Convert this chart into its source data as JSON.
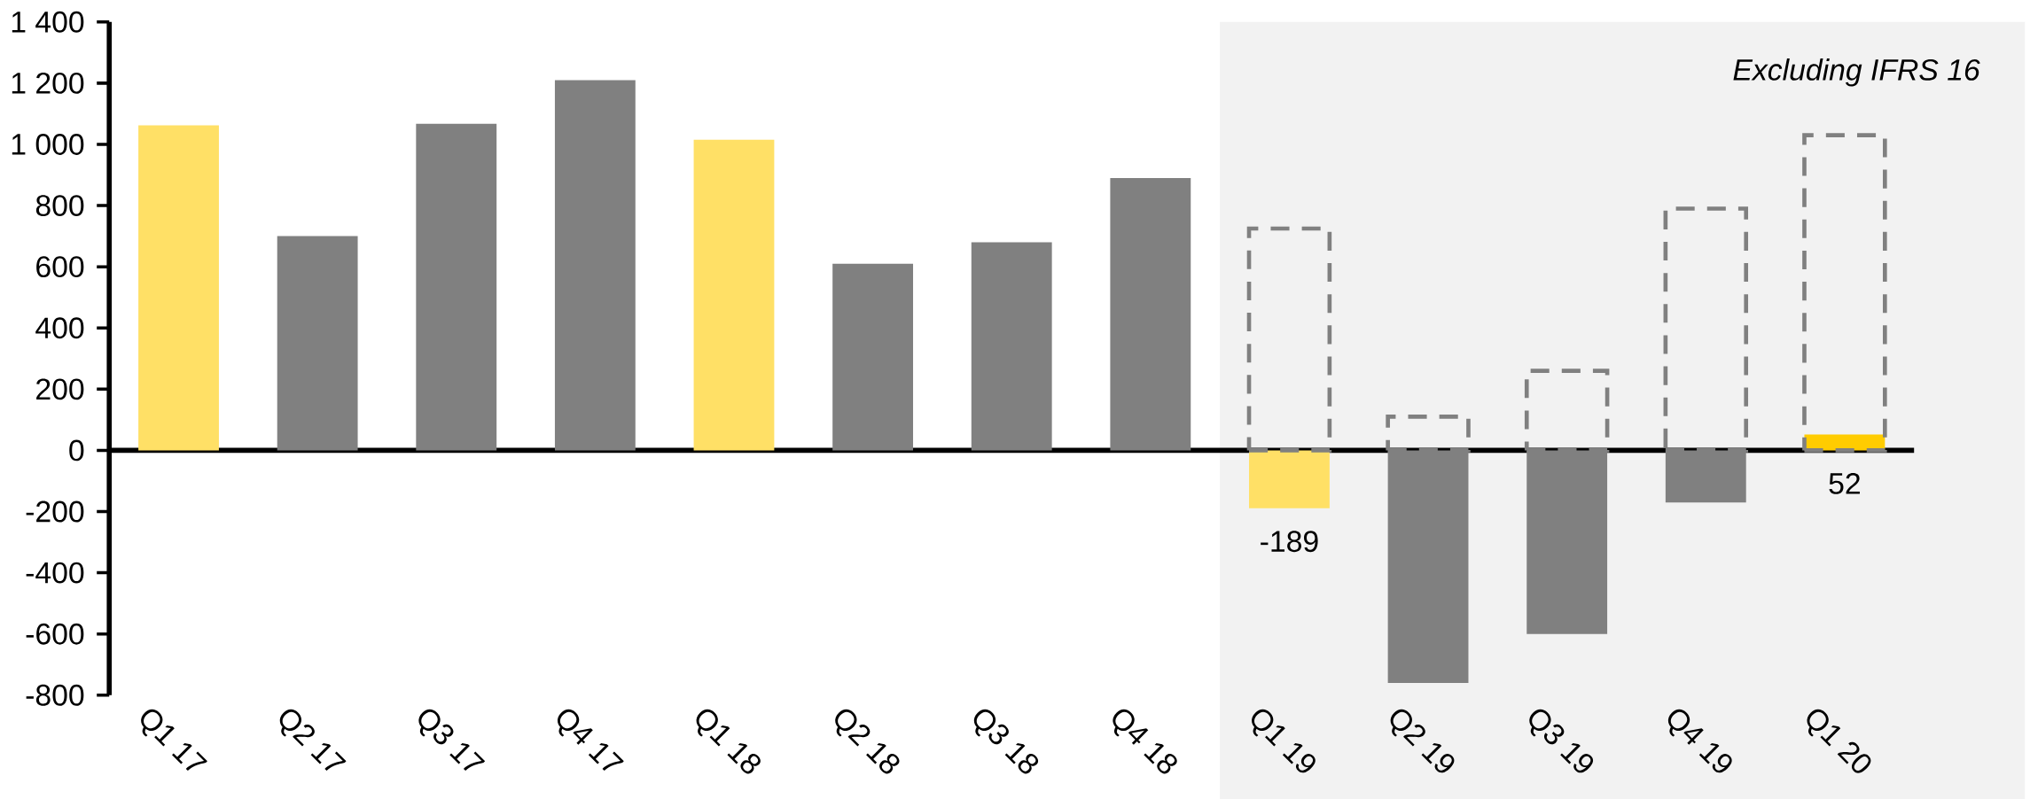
{
  "chart_data": {
    "type": "bar",
    "categories": [
      "Q1 17",
      "Q2 17",
      "Q3 17",
      "Q4 17",
      "Q1 18",
      "Q2 18",
      "Q3 18",
      "Q4 18",
      "Q1 19",
      "Q2 19",
      "Q3 19",
      "Q4 19",
      "Q1 20"
    ],
    "series": [
      {
        "colors": [
          "#ffe066",
          "#808080",
          "#808080",
          "#808080",
          "#ffe066",
          "#808080",
          "#808080",
          "#808080",
          "#ffe066",
          "#808080",
          "#808080",
          "#808080",
          "#ffcc00"
        ],
        "values": [
          1062,
          700,
          1067,
          1210,
          1015,
          610,
          680,
          890,
          -189,
          -760,
          -600,
          -170,
          52
        ],
        "value_labels": [
          null,
          null,
          null,
          null,
          null,
          null,
          null,
          null,
          "-189",
          null,
          null,
          null,
          "52"
        ]
      },
      {
        "type": "bar",
        "line_style": "dashed",
        "color": "#808080",
        "values": [
          null,
          null,
          null,
          null,
          null,
          null,
          null,
          null,
          725,
          110,
          260,
          790,
          1030
        ]
      }
    ],
    "ylim": [
      -800,
      1400
    ],
    "yticks": [
      -800,
      -600,
      -400,
      -200,
      0,
      200,
      400,
      600,
      800,
      {
        "value": 1000,
        "label": "1 000"
      },
      {
        "value": 1200,
        "label": "1 200"
      },
      {
        "value": 1400,
        "label": "1 400"
      }
    ],
    "bands": [
      {
        "axis": "x",
        "from": "Q1 19",
        "to": "Q1 20",
        "label": "Excluding IFRS 16",
        "color": "#f2f2f2"
      }
    ]
  }
}
